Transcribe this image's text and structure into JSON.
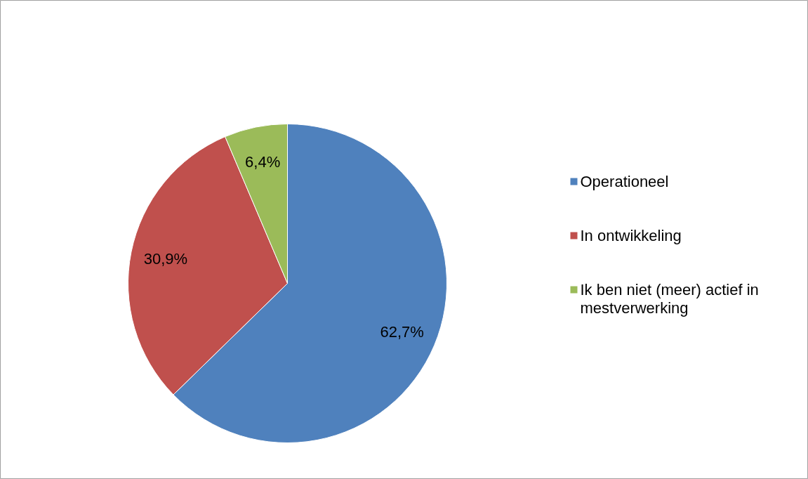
{
  "chart_data": {
    "type": "pie",
    "categories": [
      "Operationeel",
      "In ontwikkeling",
      "Ik ben niet (meer) actief in mestverwerking"
    ],
    "values": [
      62.7,
      30.9,
      6.4
    ],
    "colors": [
      "#4f81bd",
      "#c0504d",
      "#9bbb59"
    ],
    "value_labels": [
      "62,7%",
      "30,9%",
      "6,4%"
    ],
    "legend": "right"
  }
}
